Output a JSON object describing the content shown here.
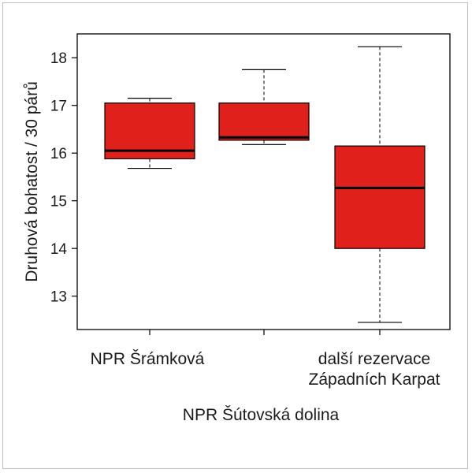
{
  "chart_data": {
    "type": "boxplot",
    "title": "",
    "ylabel": "Druhová bohatost / 30 párů",
    "xlabel_secondary": "NPR Šútovská dolina",
    "ylim": [
      12.3,
      18.5
    ],
    "yticks": [
      13,
      14,
      15,
      16,
      17,
      18
    ],
    "categories": [
      {
        "lines": [
          "NPR Šrámková"
        ]
      },
      {
        "lines": [
          ""
        ]
      },
      {
        "lines": [
          "další rezervace",
          "Západních Karpat"
        ]
      }
    ],
    "boxes": [
      {
        "whisker_low": 15.68,
        "q1": 15.88,
        "median": 16.05,
        "q3": 17.05,
        "whisker_high": 17.15
      },
      {
        "whisker_low": 16.18,
        "q1": 16.27,
        "median": 16.33,
        "q3": 17.05,
        "whisker_high": 17.75
      },
      {
        "whisker_low": 12.45,
        "q1": 14.0,
        "median": 15.27,
        "q3": 16.15,
        "whisker_high": 18.23
      }
    ],
    "box_color": "#e0201b",
    "grid": false
  }
}
